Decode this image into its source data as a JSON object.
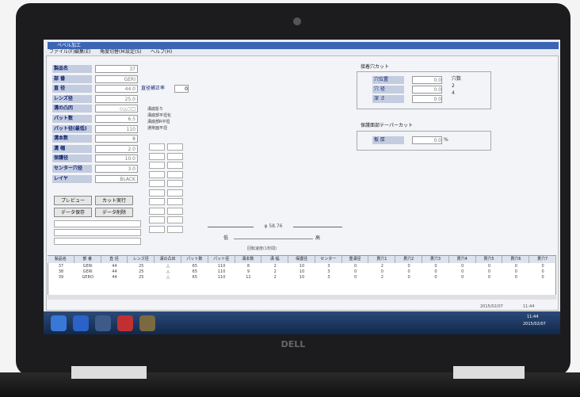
{
  "window": {
    "title": "ベベル加工",
    "menu": [
      "ファイル(F)",
      "編集(E)",
      "角度切替(M)",
      "設定(S)",
      "ヘルプ(H)"
    ]
  },
  "form": {
    "fields": [
      {
        "label": "製品名",
        "value": "37"
      },
      {
        "label": "部 番",
        "value": "GERI"
      },
      {
        "label": "直 径",
        "value": "44.0"
      },
      {
        "label": "レンズ径",
        "value": "25.0"
      },
      {
        "label": "溝の凸凹",
        "value": "◇△○□"
      },
      {
        "label": "パット数",
        "value": "6.5"
      },
      {
        "label": "パット径(最低)",
        "value": "110"
      },
      {
        "label": "溝本数",
        "value": "8"
      },
      {
        "label": "溝 幅",
        "value": "2.0"
      },
      {
        "label": "保護径",
        "value": "10.0"
      },
      {
        "label": "センター穴径",
        "value": "3.0"
      },
      {
        "label": "レイヤ",
        "value": "BLACK"
      }
    ],
    "ratio_label": "直径補正率",
    "ratio_value": "0",
    "options": [
      "溝底彫り",
      "溝底部平坦化",
      "溝底部R平坦",
      "通常面平坦"
    ],
    "buttons": [
      "プレビュー",
      "カット実行",
      "データ保存",
      "データ削除"
    ]
  },
  "preview": {
    "diameter": "φ 58.76",
    "low": "低",
    "high": "高",
    "caption": "回転速度(1秒間)"
  },
  "hole": {
    "title": "接着穴カット",
    "fields": [
      {
        "label": "穴位置",
        "value": "0.0"
      },
      {
        "label": "穴 径",
        "value": "0.0"
      },
      {
        "label": "深 さ",
        "value": "0.0"
      }
    ],
    "radios": [
      "穴数",
      "2",
      "4"
    ]
  },
  "taper": {
    "title": "保護面部テーパーカット",
    "label": "板 厚",
    "value": "0.0",
    "unit": "%"
  },
  "table": {
    "header": [
      "製品名",
      "部 番",
      "直 径",
      "レンズ径",
      "溝の凸凹",
      "パット数",
      "パット径",
      "溝本数",
      "溝 幅",
      "保護径",
      "センター",
      "重溝径",
      "貫穴1",
      "貫穴2",
      "貫穴3",
      "貫穴4",
      "貫穴5",
      "貫穴6",
      "貫穴7"
    ],
    "rows": [
      [
        "37",
        "GERI",
        "44",
        "25",
        "△",
        "65",
        "110",
        "8",
        "2",
        "10",
        "3",
        "0",
        "2",
        "0",
        "0",
        "0",
        "0",
        "0",
        "0"
      ],
      [
        "38",
        "GERI",
        "44",
        "25",
        "△",
        "65",
        "110",
        "9",
        "2",
        "10",
        "3",
        "0",
        "0",
        "0",
        "0",
        "0",
        "0",
        "0",
        "0"
      ],
      [
        "39",
        "GERO",
        "44",
        "25",
        "△",
        "65",
        "110",
        "12",
        "2",
        "10",
        "3",
        "0",
        "2",
        "0",
        "0",
        "0",
        "0",
        "0",
        "0"
      ]
    ]
  },
  "status": {
    "date": "2015/02/07",
    "time": "11:44"
  },
  "taskbar": {
    "time": "11:44",
    "date": "2015/02/07"
  },
  "brand": "DELL"
}
